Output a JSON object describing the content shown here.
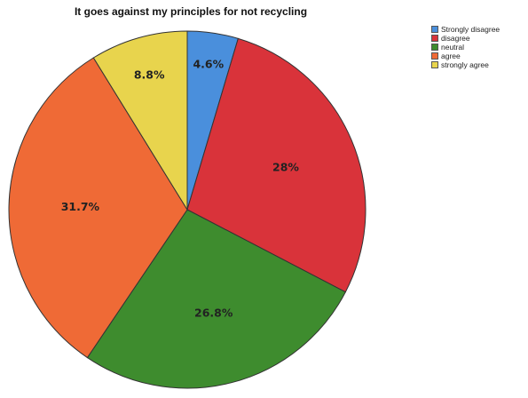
{
  "chart_data": {
    "type": "pie",
    "title": "It goes against my principles for not recycling",
    "categories": [
      "Strongly disagree",
      "disagree",
      "neutral",
      "agree",
      "strongly agree"
    ],
    "values": [
      4.6,
      28,
      26.8,
      31.7,
      8.8
    ],
    "labels": [
      "4.6%",
      "28%",
      "26.8%",
      "31.7%",
      "8.8%"
    ],
    "colors": [
      "#4a8fdc",
      "#d9333a",
      "#3e8c2e",
      "#ef6a36",
      "#e8d44d"
    ],
    "legend_position": "top-right"
  }
}
